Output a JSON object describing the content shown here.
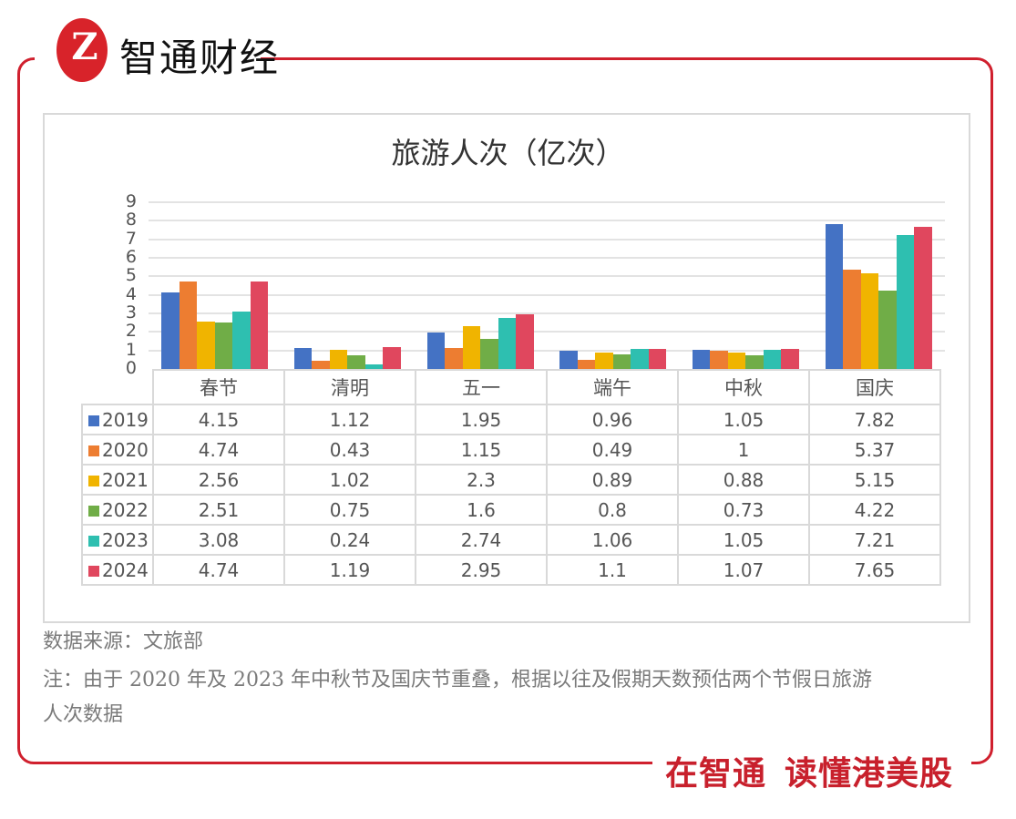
{
  "header": {
    "logo_mark": "Z",
    "brand_name": "智通财经"
  },
  "footer": {
    "slogan_left": "在智通",
    "slogan_right": "读懂港美股"
  },
  "colors": {
    "frame": "#d0202e",
    "series": [
      "#4472c4",
      "#ed7d31",
      "#f0b400",
      "#70ad47",
      "#2ebfb0",
      "#e0475e"
    ]
  },
  "chart_data": {
    "type": "bar",
    "title": "旅游人次（亿次）",
    "xlabel": "",
    "ylabel": "",
    "ylim": [
      0,
      9
    ],
    "yticks": [
      "0",
      "1",
      "2",
      "3",
      "4",
      "5",
      "6",
      "7",
      "8",
      "9"
    ],
    "grid": true,
    "legend_position": "data-table",
    "categories": [
      "春节",
      "清明",
      "五一",
      "端午",
      "中秋",
      "国庆"
    ],
    "series": [
      {
        "name": "2019",
        "values": [
          4.15,
          1.12,
          1.95,
          0.96,
          1.05,
          7.82
        ],
        "labels": [
          "4.15",
          "1.12",
          "1.95",
          "0.96",
          "1.05",
          "7.82"
        ]
      },
      {
        "name": "2020",
        "values": [
          4.74,
          0.43,
          1.15,
          0.49,
          1,
          5.37
        ],
        "labels": [
          "4.74",
          "0.43",
          "1.15",
          "0.49",
          "1",
          "5.37"
        ]
      },
      {
        "name": "2021",
        "values": [
          2.56,
          1.02,
          2.3,
          0.89,
          0.88,
          5.15
        ],
        "labels": [
          "2.56",
          "1.02",
          "2.3",
          "0.89",
          "0.88",
          "5.15"
        ]
      },
      {
        "name": "2022",
        "values": [
          2.51,
          0.75,
          1.6,
          0.8,
          0.73,
          4.22
        ],
        "labels": [
          "2.51",
          "0.75",
          "1.6",
          "0.8",
          "0.73",
          "4.22"
        ]
      },
      {
        "name": "2023",
        "values": [
          3.08,
          0.24,
          2.74,
          1.06,
          1.05,
          7.21
        ],
        "labels": [
          "3.08",
          "0.24",
          "2.74",
          "1.06",
          "1.05",
          "7.21"
        ]
      },
      {
        "name": "2024",
        "values": [
          4.74,
          1.19,
          2.95,
          1.1,
          1.07,
          7.65
        ],
        "labels": [
          "4.74",
          "1.19",
          "2.95",
          "1.1",
          "1.07",
          "7.65"
        ]
      }
    ]
  },
  "notes": {
    "source": "数据来源：文旅部",
    "note_line1": "注：由于 2020 年及 2023 年中秋节及国庆节重叠，根据以往及假期天数预估两个节假日旅游",
    "note_line2": "人次数据"
  }
}
